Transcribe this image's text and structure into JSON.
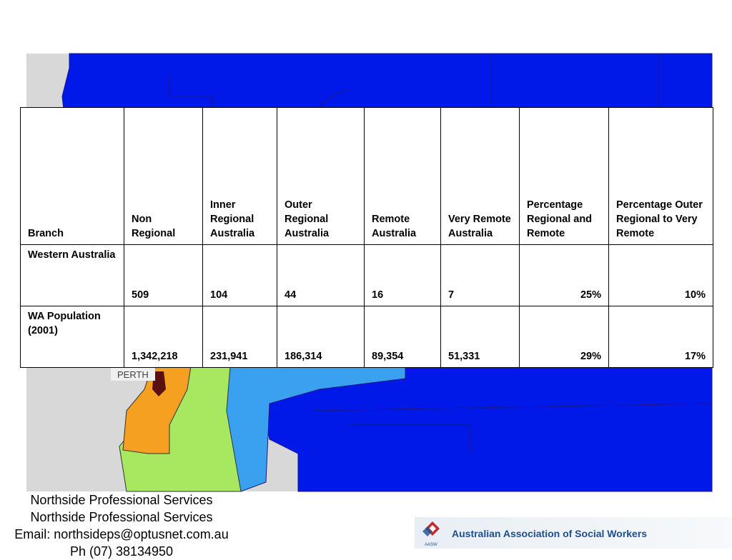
{
  "table": {
    "header": [
      "Branch",
      "Non Regional",
      "Inner Regional Australia",
      "Outer Regional Australia",
      "Remote Australia",
      "Very Remote Australia",
      "Percentage Regional and Remote",
      "Percentage Outer Regional to Very Remote"
    ],
    "rows": [
      [
        "Western Australia",
        "509",
        "104",
        "44",
        "16",
        "7",
        "25%",
        "10%"
      ],
      [
        "WA Population (2001)",
        "1,342,218",
        "231,941",
        "186,314",
        "89,354",
        "51,331",
        "29%",
        "17%"
      ]
    ]
  },
  "map": {
    "label": "PERTH"
  },
  "footer": {
    "lines": [
      "Northside Professional Services",
      "Northside Professional Services",
      "Email: northsideps@optusnet.com.au",
      "Ph (07) 38134950"
    ]
  },
  "logo": {
    "name": "Australian Association of Social Workers",
    "abbr": "AASW"
  }
}
